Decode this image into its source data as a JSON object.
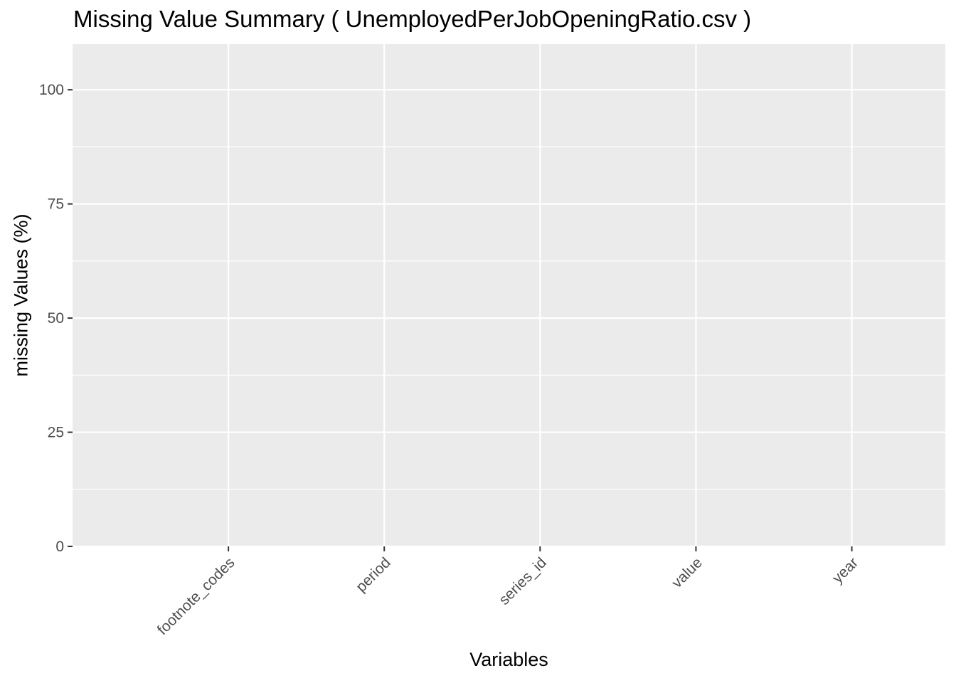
{
  "chart_data": {
    "type": "bar",
    "title": "Missing Value Summary ( UnemployedPerJobOpeningRatio.csv )",
    "xlabel": "Variables",
    "ylabel": "missing Values (%)",
    "categories": [
      "footnote_codes",
      "period",
      "series_id",
      "value",
      "year"
    ],
    "values": [
      0,
      0,
      0,
      0,
      0
    ],
    "ylim": [
      0,
      110
    ],
    "yticks": [
      0,
      25,
      50,
      75,
      100
    ],
    "grid": true,
    "legend": "none",
    "panel_background": "#EBEBEB",
    "grid_color": "#FFFFFF"
  }
}
